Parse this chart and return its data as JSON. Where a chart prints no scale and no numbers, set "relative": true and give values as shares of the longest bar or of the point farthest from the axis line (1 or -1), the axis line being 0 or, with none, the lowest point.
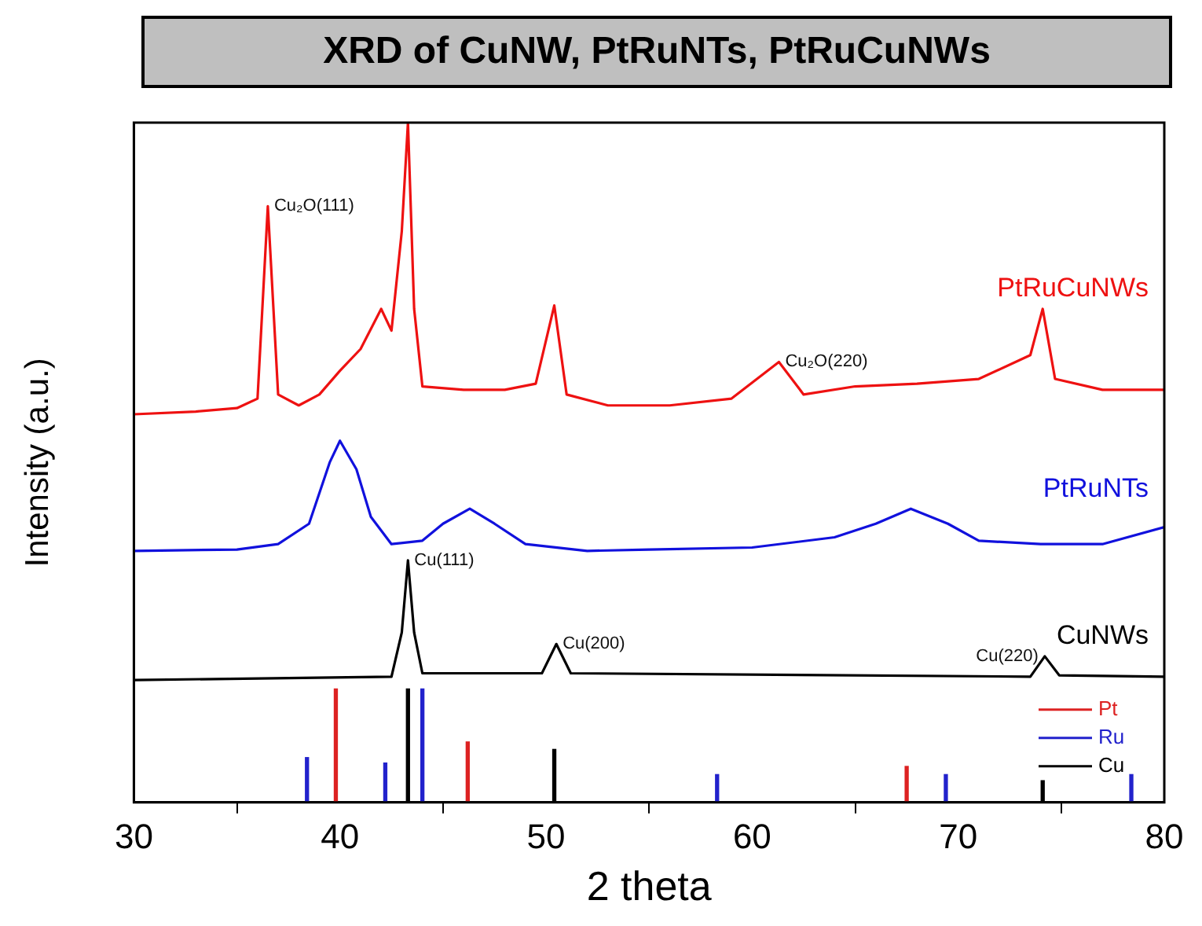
{
  "chart_data": {
    "type": "line",
    "title": "XRD of CuNW, PtRuNTs, PtRuCuNWs",
    "xlabel": "2 theta",
    "ylabel": "Intensity (a.u.)",
    "relative": true,
    "xlim": [
      30,
      80
    ],
    "xticks": [
      30,
      40,
      50,
      60,
      70,
      80
    ],
    "grid": false,
    "legend": "bottom right",
    "marker": "none",
    "line_style": "solid",
    "series": [
      {
        "name": "PtRuCuNWs",
        "color": "#ee1111",
        "x": [
          30,
          33,
          35,
          36,
          36.5,
          37,
          38,
          39,
          40,
          41,
          42,
          42.5,
          43,
          43.3,
          43.6,
          44,
          46,
          48,
          49.5,
          50.4,
          51,
          53,
          56,
          59,
          61.3,
          62.5,
          65,
          68,
          71,
          73.5,
          74.1,
          74.7,
          77,
          80
        ],
        "values": [
          0.571,
          0.575,
          0.58,
          0.594,
          0.877,
          0.6,
          0.584,
          0.6,
          0.635,
          0.667,
          0.726,
          0.694,
          0.84,
          1,
          0.726,
          0.612,
          0.607,
          0.607,
          0.616,
          0.731,
          0.6,
          0.584,
          0.584,
          0.594,
          0.648,
          0.6,
          0.612,
          0.616,
          0.623,
          0.658,
          0.726,
          0.623,
          0.607,
          0.607
        ]
      },
      {
        "name": "PtRuNTs",
        "color": "#1111dd",
        "x": [
          30,
          35,
          37,
          38.5,
          39.5,
          40,
          40.8,
          41.5,
          42.5,
          44,
          45,
          46.3,
          47.5,
          49,
          52,
          55,
          60,
          64,
          66,
          67.7,
          69.5,
          71,
          74,
          77,
          80
        ],
        "values": [
          0.37,
          0.372,
          0.38,
          0.41,
          0.5,
          0.532,
          0.49,
          0.42,
          0.38,
          0.385,
          0.41,
          0.432,
          0.41,
          0.38,
          0.37,
          0.372,
          0.375,
          0.39,
          0.41,
          0.432,
          0.41,
          0.385,
          0.38,
          0.38,
          0.405
        ]
      },
      {
        "name": "CuNWs",
        "color": "#000000",
        "x": [
          30,
          42.5,
          43,
          43.3,
          43.6,
          44,
          49.8,
          50.5,
          51.2,
          73.5,
          74.2,
          74.9,
          80
        ],
        "values": [
          0.18,
          0.185,
          0.25,
          0.356,
          0.25,
          0.19,
          0.19,
          0.233,
          0.19,
          0.185,
          0.215,
          0.187,
          0.185
        ]
      },
      {
        "name": "Pt",
        "type": "bar",
        "color": "#dd2222",
        "x": [
          39.8,
          46.2,
          67.5
        ],
        "values": [
          0.167,
          0.089,
          0.053
        ]
      },
      {
        "name": "Ru",
        "type": "bar",
        "color": "#2222cc",
        "x": [
          38.4,
          42.2,
          44.0,
          58.3,
          69.4,
          78.4
        ],
        "values": [
          0.066,
          0.058,
          0.167,
          0.041,
          0.041,
          0.041
        ]
      },
      {
        "name": "Cu",
        "type": "bar",
        "color": "#000000",
        "x": [
          43.3,
          50.4,
          74.1
        ],
        "values": [
          0.167,
          0.078,
          0.032
        ]
      }
    ],
    "annotations": [
      {
        "text": "Cu₂O(111)",
        "x": 36.5,
        "y": 0.877
      },
      {
        "text": "Cu₂O(220)",
        "x": 61.3,
        "y": 0.648
      },
      {
        "text": "Cu(111)",
        "x": 43.3,
        "y": 0.356
      },
      {
        "text": "Cu(200)",
        "x": 50.5,
        "y": 0.233
      },
      {
        "text": "Cu(220)",
        "x": 74.2,
        "y": 0.215
      }
    ]
  }
}
